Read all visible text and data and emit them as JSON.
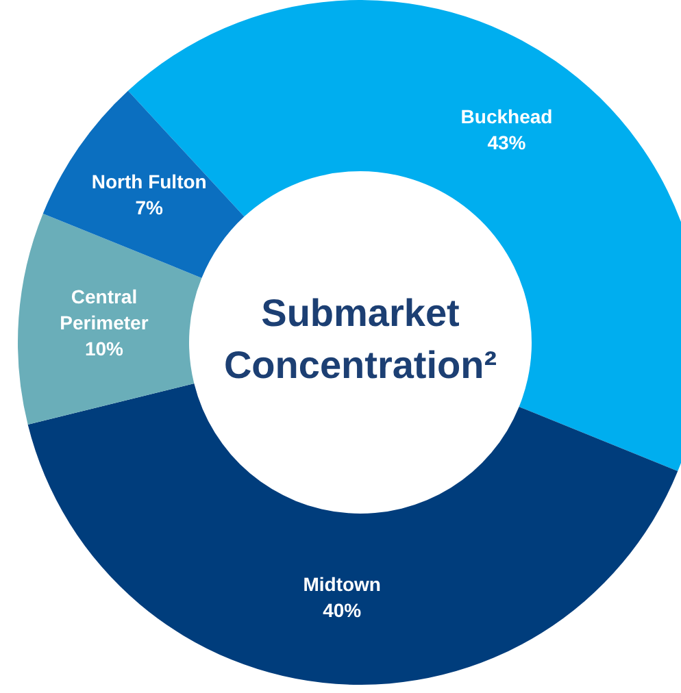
{
  "chart_data": {
    "type": "donut",
    "title": "Submarket Concentration²",
    "categories": [
      "Buckhead",
      "Midtown",
      "Central Perimeter",
      "North Fulton"
    ],
    "values": [
      43,
      40,
      10,
      7
    ],
    "value_labels": [
      "43%",
      "40%",
      "10%",
      "7%"
    ],
    "colors": [
      "#00aeef",
      "#003d7c",
      "#6aaeb9",
      "#0b6fc0"
    ],
    "legend": false
  }
}
